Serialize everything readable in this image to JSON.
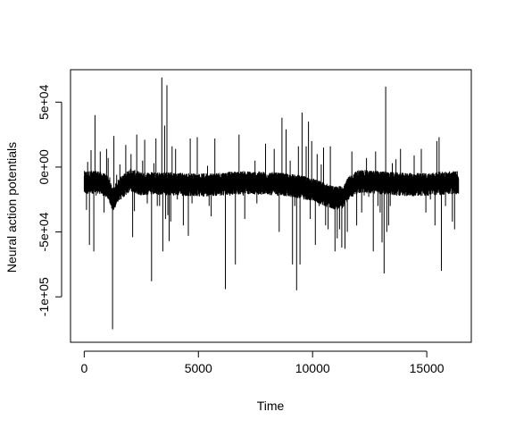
{
  "chart_data": {
    "type": "line",
    "title": "",
    "xlabel": "Time",
    "ylabel": "Neural action potentials",
    "xlim": [
      -600,
      16950
    ],
    "ylim": [
      -135000,
      75000
    ],
    "x_ticks": [
      0,
      5000,
      10000,
      15000
    ],
    "x_tick_labels": [
      "0",
      "5000",
      "10000",
      "15000"
    ],
    "y_ticks": [
      -100000,
      -50000,
      0,
      50000
    ],
    "y_tick_labels": [
      "-1e+05",
      "-5e+04",
      "0e+00",
      "5e+04"
    ],
    "grid": false,
    "legend": "none",
    "line_color": "#000000",
    "n_points": 16400,
    "x_range": [
      1,
      16400
    ],
    "baseline": [
      [
        0,
        -12000
      ],
      [
        600,
        -11500
      ],
      [
        1000,
        -15000
      ],
      [
        1250,
        -25000
      ],
      [
        1500,
        -18000
      ],
      [
        2000,
        -10000
      ],
      [
        2500,
        -13000
      ],
      [
        3000,
        -12500
      ],
      [
        4000,
        -13000
      ],
      [
        5000,
        -14000
      ],
      [
        6000,
        -13000
      ],
      [
        7000,
        -12000
      ],
      [
        8000,
        -12500
      ],
      [
        9000,
        -14000
      ],
      [
        10000,
        -17000
      ],
      [
        10500,
        -21000
      ],
      [
        11000,
        -24000
      ],
      [
        11300,
        -23000
      ],
      [
        11600,
        -16000
      ],
      [
        12000,
        -11000
      ],
      [
        13000,
        -12000
      ],
      [
        14000,
        -13500
      ],
      [
        15000,
        -13500
      ],
      [
        16000,
        -12000
      ],
      [
        16400,
        -12000
      ]
    ],
    "spikes": [
      [
        100,
        -33000
      ],
      [
        150,
        4000
      ],
      [
        230,
        -60000
      ],
      [
        300,
        13000
      ],
      [
        380,
        -5000
      ],
      [
        420,
        -65000
      ],
      [
        470,
        40000
      ],
      [
        520,
        -22000
      ],
      [
        700,
        12000
      ],
      [
        800,
        -18000
      ],
      [
        870,
        -35000
      ],
      [
        980,
        14000
      ],
      [
        1050,
        7000
      ],
      [
        1120,
        -8000
      ],
      [
        1240,
        -125000
      ],
      [
        1300,
        24000
      ],
      [
        1420,
        -6000
      ],
      [
        1500,
        -16000
      ],
      [
        1560,
        2000
      ],
      [
        1640,
        -20000
      ],
      [
        1700,
        -22000
      ],
      [
        1820,
        17000
      ],
      [
        1890,
        -16000
      ],
      [
        1960,
        -15000
      ],
      [
        2050,
        10000
      ],
      [
        2120,
        -54000
      ],
      [
        2200,
        -34000
      ],
      [
        2300,
        25000
      ],
      [
        2380,
        -20000
      ],
      [
        2460,
        -10000
      ],
      [
        2560,
        5000
      ],
      [
        2650,
        21000
      ],
      [
        2760,
        -28000
      ],
      [
        2850,
        -9000
      ],
      [
        2950,
        -88000
      ],
      [
        3050,
        3000
      ],
      [
        3140,
        22000
      ],
      [
        3200,
        -30000
      ],
      [
        3300,
        -30000
      ],
      [
        3400,
        69000
      ],
      [
        3440,
        -65000
      ],
      [
        3520,
        32000
      ],
      [
        3560,
        -40000
      ],
      [
        3620,
        63000
      ],
      [
        3660,
        -37000
      ],
      [
        3720,
        -57000
      ],
      [
        3790,
        -42000
      ],
      [
        3850,
        16000
      ],
      [
        3910,
        -22000
      ],
      [
        4000,
        14000
      ],
      [
        4080,
        -25000
      ],
      [
        4150,
        -15000
      ],
      [
        4260,
        -15000
      ],
      [
        4340,
        -45000
      ],
      [
        4420,
        -18000
      ],
      [
        4490,
        -15000
      ],
      [
        4560,
        -53000
      ],
      [
        4640,
        22000
      ],
      [
        4720,
        -28000
      ],
      [
        4800,
        -12000
      ],
      [
        4870,
        -20000
      ],
      [
        4950,
        23000
      ],
      [
        5020,
        -17000
      ],
      [
        5100,
        -18000
      ],
      [
        5200,
        -12000
      ],
      [
        5300,
        -17000
      ],
      [
        5400,
        1000
      ],
      [
        5470,
        -30000
      ],
      [
        5560,
        -38000
      ],
      [
        5650,
        -10000
      ],
      [
        5720,
        22000
      ],
      [
        5840,
        -21000
      ],
      [
        5950,
        -10000
      ],
      [
        6080,
        -16000
      ],
      [
        6180,
        -94000
      ],
      [
        6280,
        -15000
      ],
      [
        6380,
        -22000
      ],
      [
        6480,
        -16000
      ],
      [
        6620,
        -75000
      ],
      [
        6700,
        -10000
      ],
      [
        6780,
        25000
      ],
      [
        6880,
        -16000
      ],
      [
        6960,
        -22000
      ],
      [
        7030,
        -40000
      ],
      [
        7100,
        -12000
      ],
      [
        7200,
        -14000
      ],
      [
        7300,
        -10000
      ],
      [
        7400,
        -17000
      ],
      [
        7480,
        5000
      ],
      [
        7560,
        -28000
      ],
      [
        7640,
        -12000
      ],
      [
        7740,
        -20000
      ],
      [
        7840,
        -15000
      ],
      [
        7940,
        18000
      ],
      [
        8040,
        -18000
      ],
      [
        8140,
        -12000
      ],
      [
        8240,
        -14000
      ],
      [
        8320,
        14000
      ],
      [
        8420,
        -15000
      ],
      [
        8540,
        -50000
      ],
      [
        8660,
        38000
      ],
      [
        8740,
        -20000
      ],
      [
        8840,
        29000
      ],
      [
        8930,
        -18000
      ],
      [
        9020,
        5000
      ],
      [
        9120,
        -75000
      ],
      [
        9220,
        -30000
      ],
      [
        9300,
        -95000
      ],
      [
        9380,
        16000
      ],
      [
        9450,
        -75000
      ],
      [
        9540,
        42000
      ],
      [
        9620,
        -25000
      ],
      [
        9720,
        16000
      ],
      [
        9820,
        35000
      ],
      [
        9900,
        -40000
      ],
      [
        9960,
        20000
      ],
      [
        10040,
        -18000
      ],
      [
        10120,
        -60000
      ],
      [
        10200,
        10000
      ],
      [
        10290,
        -30000
      ],
      [
        10380,
        2000
      ],
      [
        10480,
        15000
      ],
      [
        10570,
        -45000
      ],
      [
        10680,
        -48000
      ],
      [
        10780,
        16000
      ],
      [
        10880,
        -25000
      ],
      [
        10980,
        -65000
      ],
      [
        11080,
        -55000
      ],
      [
        11180,
        -48000
      ],
      [
        11280,
        -62000
      ],
      [
        11350,
        -25000
      ],
      [
        11420,
        -63000
      ],
      [
        11520,
        -50000
      ],
      [
        11620,
        -23000
      ],
      [
        11720,
        12000
      ],
      [
        11830,
        -10000
      ],
      [
        11930,
        -45000
      ],
      [
        12040,
        -20000
      ],
      [
        12150,
        -35000
      ],
      [
        12260,
        -22000
      ],
      [
        12360,
        7000
      ],
      [
        12460,
        -23000
      ],
      [
        12560,
        -14000
      ],
      [
        12660,
        -65000
      ],
      [
        12760,
        12000
      ],
      [
        12860,
        -30000
      ],
      [
        12960,
        -35000
      ],
      [
        13040,
        -58000
      ],
      [
        13130,
        -82000
      ],
      [
        13200,
        62000
      ],
      [
        13250,
        -50000
      ],
      [
        13330,
        -45000
      ],
      [
        13400,
        -30000
      ],
      [
        13490,
        3000
      ],
      [
        13560,
        -20000
      ],
      [
        13650,
        6000
      ],
      [
        13750,
        -16000
      ],
      [
        13850,
        14000
      ],
      [
        13950,
        -20000
      ],
      [
        14050,
        -20000
      ],
      [
        14150,
        -5000
      ],
      [
        14250,
        -15000
      ],
      [
        14350,
        -10000
      ],
      [
        14450,
        9000
      ],
      [
        14550,
        -18000
      ],
      [
        14650,
        -10000
      ],
      [
        14760,
        14000
      ],
      [
        14860,
        -20000
      ],
      [
        14960,
        -35000
      ],
      [
        15060,
        -15000
      ],
      [
        15160,
        -25000
      ],
      [
        15260,
        -18000
      ],
      [
        15360,
        -45000
      ],
      [
        15440,
        20000
      ],
      [
        15540,
        23000
      ],
      [
        15640,
        -80000
      ],
      [
        15730,
        -12000
      ],
      [
        15820,
        -30000
      ],
      [
        15920,
        -10000
      ],
      [
        16020,
        -17000
      ],
      [
        16120,
        -42000
      ],
      [
        16220,
        -48000
      ],
      [
        16320,
        -10000
      ]
    ]
  }
}
